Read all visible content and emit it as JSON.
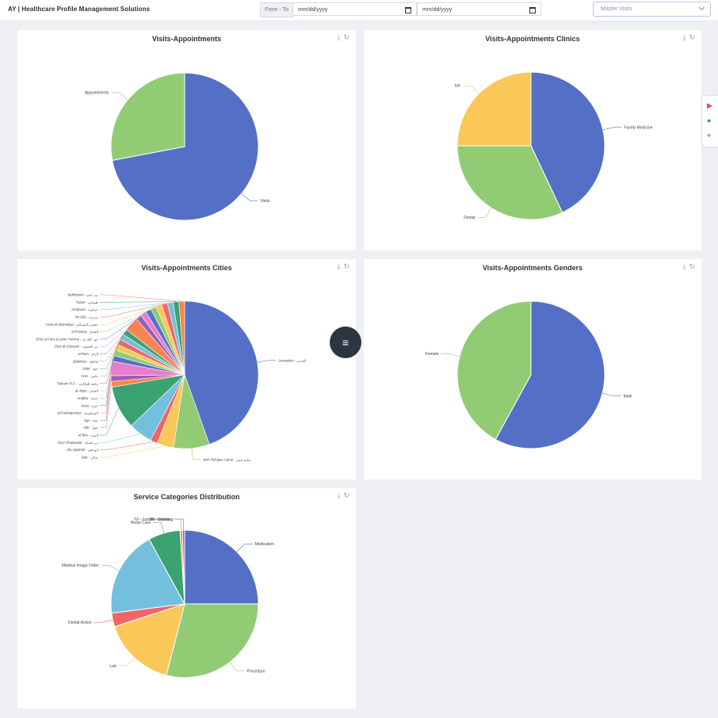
{
  "header": {
    "brand": "AY | Healthcare Profile Management Solutions",
    "range_label": "From - To",
    "from_placeholder": "mm/dd/yyyy",
    "to_placeholder": "mm/dd/yyyy",
    "select_value": "Master Visits"
  },
  "fab_icon": "menu-icon",
  "side_icons": [
    "youtube-icon",
    "whatsapp-icon",
    "map-pin-icon"
  ],
  "chart_data": [
    {
      "type": "pie",
      "title": "Visits-Appointments",
      "slices": [
        {
          "label": "Visits",
          "value": 72,
          "color": "#5470c6"
        },
        {
          "label": "Appointments",
          "value": 28,
          "color": "#91cc75"
        }
      ]
    },
    {
      "type": "pie",
      "title": "Visits-Appointments Clinics",
      "slices": [
        {
          "label": "Family Medicine",
          "value": 43,
          "color": "#5470c6"
        },
        {
          "label": "Dental",
          "value": 32,
          "color": "#91cc75"
        },
        {
          "label": "IVF",
          "value": 25,
          "color": "#fac858"
        }
      ]
    },
    {
      "type": "pie",
      "title": "Visits-Appointments Cities",
      "slices": [
        {
          "label": "Jerusalem - القدس",
          "value": 42.5,
          "color": "#5470c6"
        },
        {
          "label": "Jinin Refugee Camp - مخيم جنين",
          "value": 7.5,
          "color": "#91cc75"
        },
        {
          "label": "Sale - سالي",
          "value": 3.5,
          "color": "#fac858"
        },
        {
          "label": "Abu Qashsh - ابو قش",
          "value": 1.5,
          "color": "#ee6666"
        },
        {
          "label": "Deyr Ghassaala - دير غسانة",
          "value": 5,
          "color": "#73c0de"
        },
        {
          "label": "al Bira - البيرة",
          "value": 9,
          "color": "#3ba272"
        },
        {
          "label": "Attil - عتيل",
          "value": 1.2,
          "color": "#fc8452"
        },
        {
          "label": "Ajja - عجة",
          "value": 1.2,
          "color": "#9a60b4"
        },
        {
          "label": "al-Fandaqumiya - الفندقومية",
          "value": 3,
          "color": "#ea7ccc"
        },
        {
          "label": "Anza - عنزة",
          "value": 1.2,
          "color": "#5470c6"
        },
        {
          "label": "Arabba - عرابة",
          "value": 1.2,
          "color": "#91cc75"
        },
        {
          "label": "al-Jiyan - الجيان",
          "value": 1.2,
          "color": "#fac858"
        },
        {
          "label": "Tulkarm R.C. - مخيم طولكرم",
          "value": 1.2,
          "color": "#ee6666"
        },
        {
          "label": "Anin - عانين",
          "value": 1.2,
          "color": "#73c0de"
        },
        {
          "label": "Jaba' - جبع",
          "value": 1.2,
          "color": "#3ba272"
        },
        {
          "label": "Qabatiya - قباطية",
          "value": 3,
          "color": "#fc8452"
        },
        {
          "label": "al-Ram - الرام",
          "value": 1.2,
          "color": "#9a60b4"
        },
        {
          "label": "Deyr al Ghusoun - دير الغصون",
          "value": 1.2,
          "color": "#ea7ccc"
        },
        {
          "label": "Ghor al Far'a & Umm Hurzine - غور الفارعة",
          "value": 1.2,
          "color": "#5470c6"
        },
        {
          "label": "al Funduq - الفندق",
          "value": 1.2,
          "color": "#91cc75"
        },
        {
          "label": "'Asira al Shamaliya - عصيرة الشمالية",
          "value": 1.2,
          "color": "#fac858"
        },
        {
          "label": "Bir Zeit - بيرزيت",
          "value": 1.2,
          "color": "#ee6666"
        },
        {
          "label": "Arrabuna - عرابونة",
          "value": 1.2,
          "color": "#73c0de"
        },
        {
          "label": "Tubas - طوباس",
          "value": 1.2,
          "color": "#3ba272"
        },
        {
          "label": "Bethlehem - بيت لحم",
          "value": 1.2,
          "color": "#fc8452"
        }
      ]
    },
    {
      "type": "pie",
      "title": "Visits-Appointments Genders",
      "slices": [
        {
          "label": "Male",
          "value": 58,
          "color": "#5470c6"
        },
        {
          "label": "Female",
          "value": 42,
          "color": "#91cc75"
        }
      ]
    },
    {
      "type": "pie",
      "title": "Service Categories Distribution",
      "slices": [
        {
          "label": "Medication",
          "value": 25,
          "color": "#5470c6"
        },
        {
          "label": "Procedure",
          "value": 29,
          "color": "#91cc75"
        },
        {
          "label": "Lab",
          "value": 16,
          "color": "#fac858"
        },
        {
          "label": "Dental Action",
          "value": 3,
          "color": "#ee6666"
        },
        {
          "label": "Medical Image Order",
          "value": 19,
          "color": "#73c0de"
        },
        {
          "label": "Home Care",
          "value": 7,
          "color": "#3ba272"
        },
        {
          "label": "IVI - transfer embryo",
          "value": 0.5,
          "color": "#fc8452"
        },
        {
          "label": "IVI - Greeting",
          "value": 0.5,
          "color": "#9a60b4"
        }
      ]
    }
  ]
}
